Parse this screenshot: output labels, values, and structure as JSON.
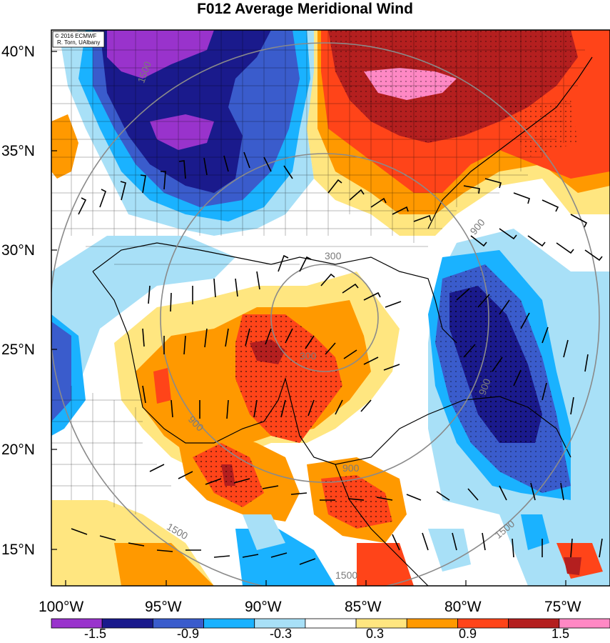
{
  "title": "F012 Average Meridional Wind",
  "credits": {
    "line1": "© 2016 ECMWF",
    "line2": "R. Torn, UAlbany"
  },
  "axes": {
    "lat_labels": [
      "40°N",
      "35°N",
      "30°N",
      "25°N",
      "20°N",
      "15°N"
    ],
    "lon_labels": [
      "100°W",
      "95°W",
      "90°W",
      "85°W",
      "80°W",
      "75°W"
    ]
  },
  "contour_labels": [
    "300",
    "300",
    "900",
    "900",
    "900",
    "900",
    "1500",
    "1500",
    "1500",
    "1500"
  ],
  "colorbar": {
    "colors": [
      "#9933cc",
      "#1a1a8c",
      "#3a5ccc",
      "#1ab2ff",
      "#a8e0f7",
      "#ffffff",
      "#ffe680",
      "#ff9900",
      "#ff4419",
      "#b41f1f",
      "#ff88c4"
    ],
    "tick_labels": [
      "-1.5",
      "-0.9",
      "-0.3",
      "0.3",
      "0.9",
      "1.5"
    ]
  },
  "chart_data": {
    "type": "heatmap",
    "title": "F012 Average Meridional Wind",
    "x_range": [
      "100°W",
      "73°W"
    ],
    "y_range": [
      "13°N",
      "41°N"
    ],
    "levels": [
      -1.5,
      -0.9,
      -0.3,
      0.3,
      0.9,
      1.5
    ],
    "overlay_contour_values": [
      300,
      900,
      1500
    ],
    "features": [
      "shaded meridional wind anomaly",
      "wind barbs",
      "range rings",
      "stippled regions"
    ]
  }
}
